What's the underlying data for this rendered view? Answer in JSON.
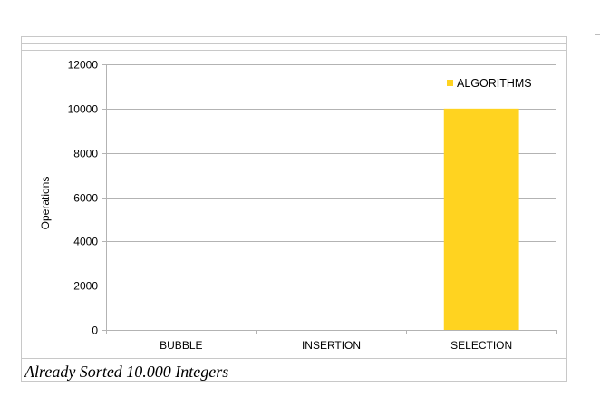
{
  "caption": "Already Sorted 10.000 Integers",
  "chart_data": {
    "type": "bar",
    "categories": [
      "BUBBLE",
      "INSERTION",
      "SELECTION"
    ],
    "series": [
      {
        "name": "ALGORITHMS",
        "values": [
          0,
          0,
          10000
        ],
        "color": "#ffd320"
      }
    ],
    "ylabel": "Operations",
    "ylim": [
      0,
      12000
    ],
    "yticks": [
      0,
      2000,
      4000,
      6000,
      8000,
      10000,
      12000
    ],
    "grid": true,
    "legend_position": "top-right"
  }
}
